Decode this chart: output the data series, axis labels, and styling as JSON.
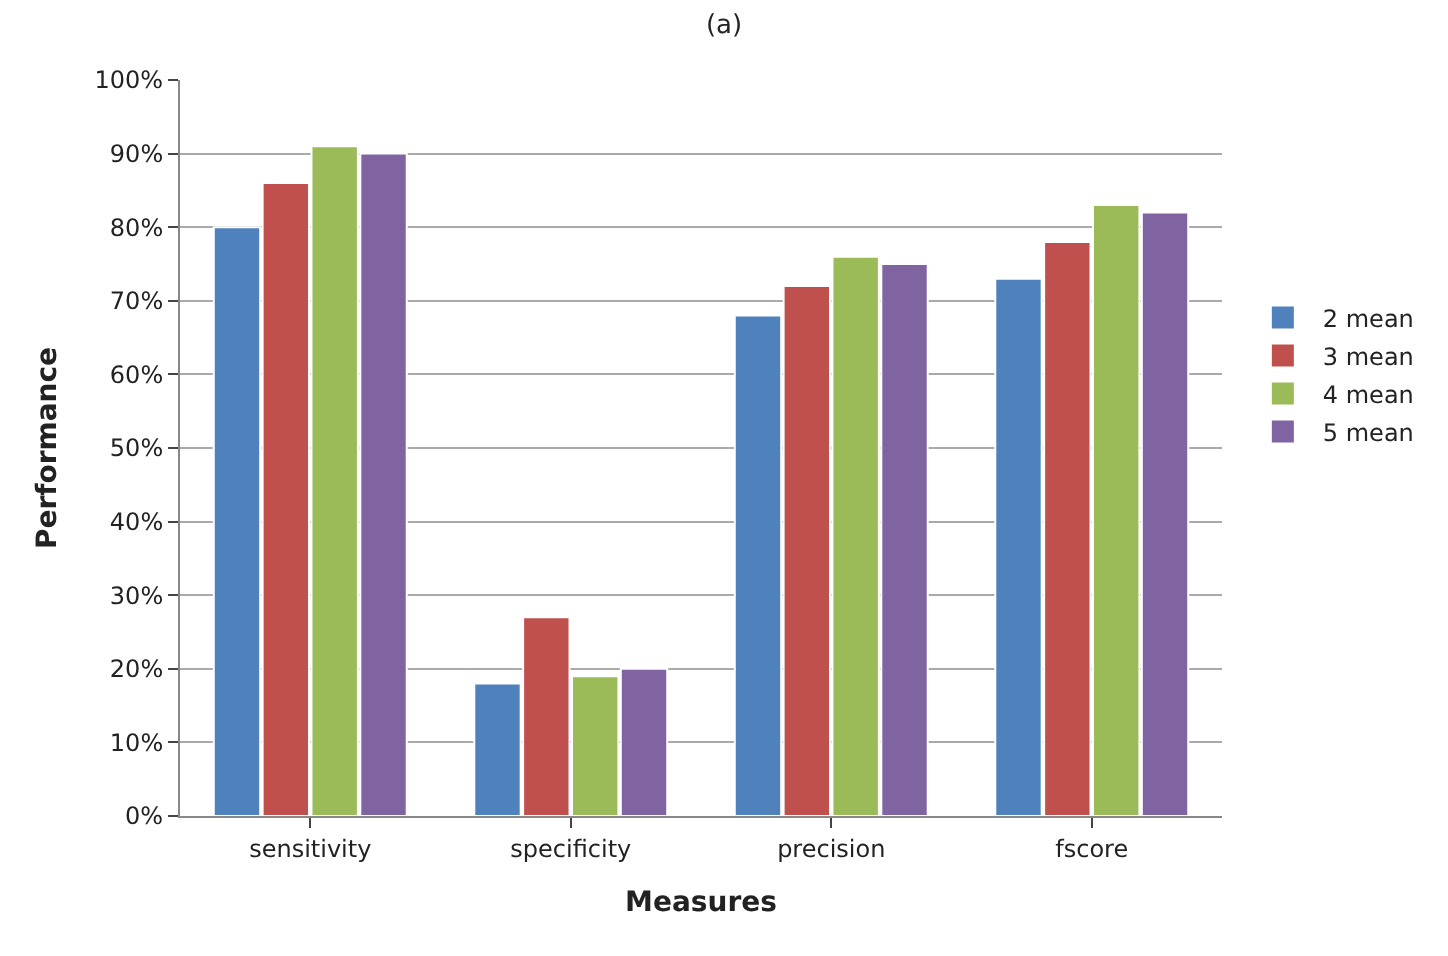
{
  "chart_data": {
    "type": "bar",
    "title": "(a)",
    "xlabel": "Measures",
    "ylabel": "Performance",
    "categories": [
      "sensitivity",
      "specificity",
      "precision",
      "fscore"
    ],
    "series": [
      {
        "name": "2 mean",
        "color": "#4f81bd",
        "values": [
          80,
          18,
          68,
          73
        ]
      },
      {
        "name": "3 mean",
        "color": "#c0504d",
        "values": [
          86,
          27,
          72,
          78
        ]
      },
      {
        "name": "4 mean",
        "color": "#9bbb59",
        "values": [
          91,
          19,
          76,
          83
        ]
      },
      {
        "name": "5 mean",
        "color": "#8064a2",
        "values": [
          90,
          20,
          75,
          82
        ]
      }
    ],
    "ylim": [
      0,
      100
    ],
    "yticks": [
      {
        "value": 0,
        "label": "0%"
      },
      {
        "value": 10,
        "label": "10%"
      },
      {
        "value": 20,
        "label": "20%"
      },
      {
        "value": 30,
        "label": "30%"
      },
      {
        "value": 40,
        "label": "40%"
      },
      {
        "value": 50,
        "label": "50%"
      },
      {
        "value": 60,
        "label": "60%"
      },
      {
        "value": 70,
        "label": "70%"
      },
      {
        "value": 80,
        "label": "80%"
      },
      {
        "value": 90,
        "label": "90%"
      },
      {
        "value": 100,
        "label": "100%"
      }
    ],
    "grid": "y",
    "legend": "right"
  }
}
